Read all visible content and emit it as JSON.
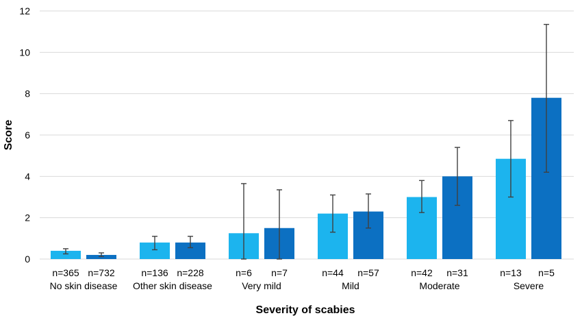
{
  "chart_data": {
    "type": "bar",
    "xlabel": "Severity of scabies",
    "ylabel": "Score",
    "ylim": [
      0,
      12
    ],
    "yticks": [
      0,
      2,
      4,
      6,
      8,
      10,
      12
    ],
    "grid": true,
    "colors": {
      "series1": "#1cb4ee",
      "series2": "#0c70c2",
      "grid": "#d9d9d9",
      "errorbar": "#404040"
    },
    "categories": [
      "No skin disease",
      "Other skin disease",
      "Very mild",
      "Mild",
      "Moderate",
      "Severe"
    ],
    "series": [
      {
        "values": [
          0.4,
          0.8,
          1.25,
          2.2,
          3.0,
          4.85
        ],
        "error_low": [
          0.25,
          0.45,
          0.0,
          1.3,
          2.25,
          3.0
        ],
        "error_high": [
          0.5,
          1.1,
          3.65,
          3.1,
          3.8,
          6.7
        ],
        "n_labels": [
          "n=365",
          "n=136",
          "n=6",
          "n=44",
          "n=42",
          "n=13"
        ]
      },
      {
        "values": [
          0.2,
          0.8,
          1.5,
          2.3,
          4.0,
          7.8
        ],
        "error_low": [
          0.12,
          0.55,
          0.0,
          1.5,
          2.6,
          4.2
        ],
        "error_high": [
          0.3,
          1.1,
          3.35,
          3.15,
          5.4,
          11.35
        ],
        "n_labels": [
          "n=732",
          "n=228",
          "n=7",
          "n=57",
          "n=31",
          "n=5"
        ]
      }
    ]
  }
}
